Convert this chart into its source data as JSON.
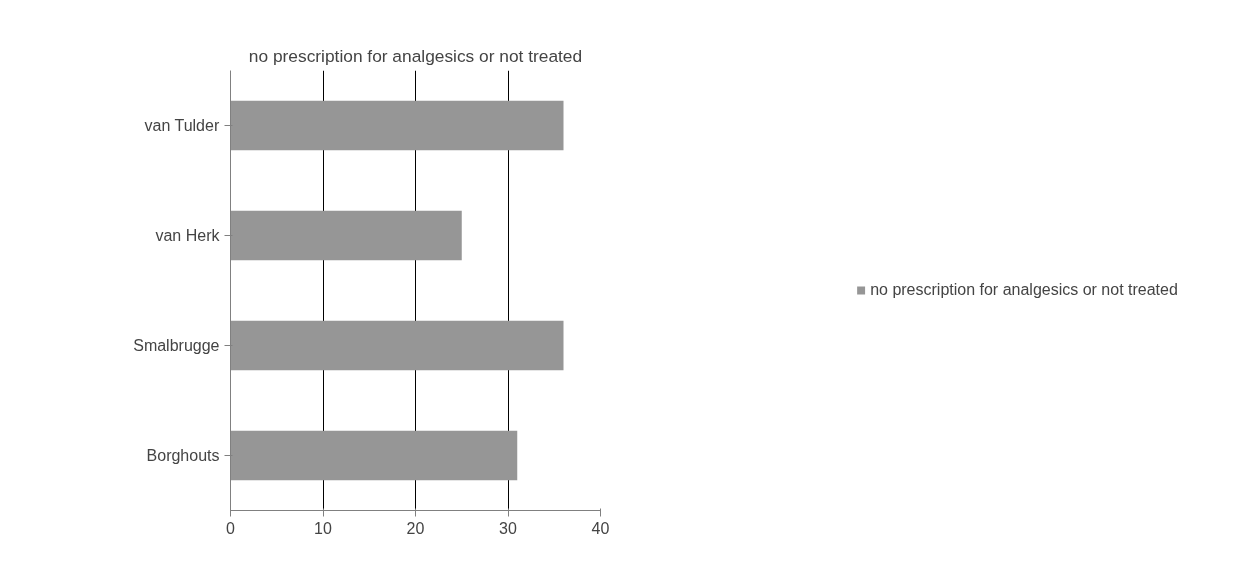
{
  "chart_data": {
    "type": "bar",
    "orientation": "horizontal",
    "title": "no prescription for analgesics or not treated",
    "categories": [
      "van Tulder",
      "van Herk",
      "Smalbrugge",
      "Borghouts"
    ],
    "series": [
      {
        "name": "no prescription for analgesics or not treated",
        "color": "#969696",
        "values": [
          36,
          25,
          36,
          31
        ]
      }
    ],
    "xlim": [
      0,
      40
    ],
    "xticks": [
      0,
      10,
      20,
      30,
      40
    ],
    "grid": "x",
    "legend": "right"
  }
}
